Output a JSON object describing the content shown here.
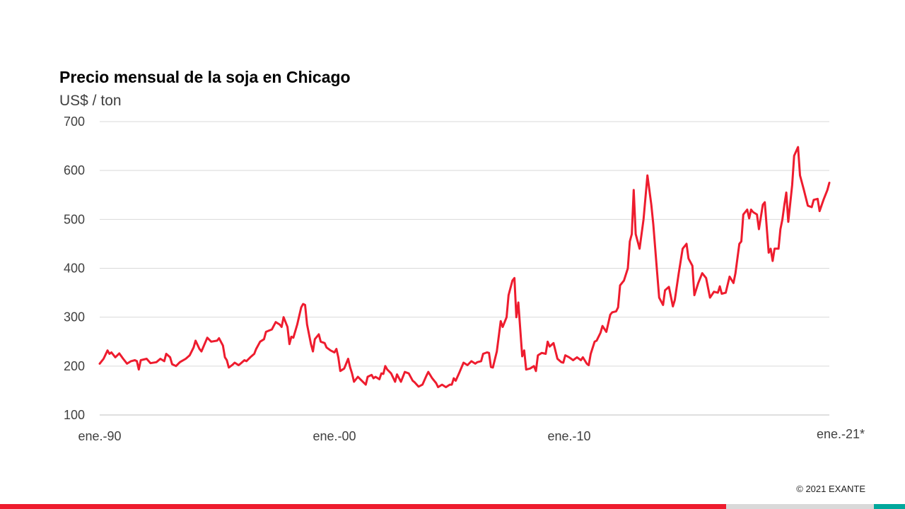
{
  "title": "Precio mensual de la soja en Chicago",
  "unit_label": "US$ / ton",
  "copyright": "© 2021 EXANTE",
  "colors": {
    "line": "#ee1c2e",
    "grid": "#d9d9d9",
    "tick_text": "#404040",
    "footer": [
      "#ee1c2e",
      "#d9d9d9",
      "#00a89c"
    ]
  },
  "chart_data": {
    "type": "line",
    "title": "Precio mensual de la soja en Chicago",
    "ylabel": "US$ / ton",
    "ylim": [
      100,
      700
    ],
    "yticks": [
      100,
      200,
      300,
      400,
      500,
      600,
      700
    ],
    "xlim": [
      "1990-01",
      "2021-02"
    ],
    "xticks": [
      {
        "label": "ene.-90",
        "date": "1990-01"
      },
      {
        "label": "ene.-00",
        "date": "2000-01"
      },
      {
        "label": "ene.-10",
        "date": "2010-01"
      },
      {
        "label": "ene.-21*",
        "date": "2021-02"
      }
    ],
    "grid": true,
    "series": [
      {
        "color": "#ee1c2e",
        "points": [
          [
            "1990-01",
            205
          ],
          [
            "1990-03",
            215
          ],
          [
            "1990-05",
            232
          ],
          [
            "1990-06",
            225
          ],
          [
            "1990-07",
            228
          ],
          [
            "1990-09",
            218
          ],
          [
            "1990-11",
            226
          ],
          [
            "1991-01",
            215
          ],
          [
            "1991-03",
            205
          ],
          [
            "1991-05",
            210
          ],
          [
            "1991-07",
            212
          ],
          [
            "1991-08",
            210
          ],
          [
            "1991-09",
            193
          ],
          [
            "1991-10",
            212
          ],
          [
            "1992-01",
            215
          ],
          [
            "1992-03",
            206
          ],
          [
            "1992-06",
            208
          ],
          [
            "1992-08",
            215
          ],
          [
            "1992-10",
            210
          ],
          [
            "1992-11",
            225
          ],
          [
            "1993-01",
            218
          ],
          [
            "1993-02",
            204
          ],
          [
            "1993-04",
            200
          ],
          [
            "1993-06",
            208
          ],
          [
            "1993-09",
            215
          ],
          [
            "1993-11",
            222
          ],
          [
            "1994-01",
            238
          ],
          [
            "1994-02",
            252
          ],
          [
            "1994-04",
            235
          ],
          [
            "1994-05",
            230
          ],
          [
            "1994-08",
            258
          ],
          [
            "1994-10",
            250
          ],
          [
            "1995-01",
            252
          ],
          [
            "1995-02",
            257
          ],
          [
            "1995-04",
            242
          ],
          [
            "1995-05",
            218
          ],
          [
            "1995-06",
            212
          ],
          [
            "1995-07",
            197
          ],
          [
            "1995-09",
            203
          ],
          [
            "1995-10",
            207
          ],
          [
            "1995-12",
            202
          ],
          [
            "1996-01",
            205
          ],
          [
            "1996-03",
            212
          ],
          [
            "1996-04",
            210
          ],
          [
            "1996-06",
            218
          ],
          [
            "1996-08",
            225
          ],
          [
            "1996-09",
            235
          ],
          [
            "1996-11",
            250
          ],
          [
            "1997-01",
            255
          ],
          [
            "1997-02",
            270
          ],
          [
            "1997-05",
            275
          ],
          [
            "1997-07",
            290
          ],
          [
            "1997-09",
            285
          ],
          [
            "1997-10",
            280
          ],
          [
            "1997-11",
            300
          ],
          [
            "1998-01",
            280
          ],
          [
            "1998-02",
            245
          ],
          [
            "1998-03",
            260
          ],
          [
            "1998-04",
            258
          ],
          [
            "1998-06",
            285
          ],
          [
            "1998-08",
            320
          ],
          [
            "1998-09",
            327
          ],
          [
            "1998-10",
            325
          ],
          [
            "1998-11",
            285
          ],
          [
            "1999-01",
            245
          ],
          [
            "1999-02",
            230
          ],
          [
            "1999-03",
            255
          ],
          [
            "1999-05",
            265
          ],
          [
            "1999-06",
            250
          ],
          [
            "1999-08",
            247
          ],
          [
            "1999-09",
            238
          ],
          [
            "1999-11",
            232
          ],
          [
            "2000-01",
            228
          ],
          [
            "2000-02",
            235
          ],
          [
            "2000-03",
            218
          ],
          [
            "2000-04",
            190
          ],
          [
            "2000-06",
            195
          ],
          [
            "2000-08",
            215
          ],
          [
            "2000-09",
            198
          ],
          [
            "2000-10",
            185
          ],
          [
            "2000-11",
            168
          ],
          [
            "2001-01",
            178
          ],
          [
            "2001-03",
            170
          ],
          [
            "2001-05",
            162
          ],
          [
            "2001-06",
            178
          ],
          [
            "2001-08",
            182
          ],
          [
            "2001-09",
            175
          ],
          [
            "2001-10",
            178
          ],
          [
            "2001-12",
            173
          ],
          [
            "2002-01",
            185
          ],
          [
            "2002-02",
            184
          ],
          [
            "2002-03",
            200
          ],
          [
            "2002-04",
            193
          ],
          [
            "2002-06",
            185
          ],
          [
            "2002-08",
            168
          ],
          [
            "2002-09",
            183
          ],
          [
            "2002-11",
            168
          ],
          [
            "2003-01",
            188
          ],
          [
            "2003-03",
            185
          ],
          [
            "2003-05",
            170
          ],
          [
            "2003-06",
            167
          ],
          [
            "2003-08",
            158
          ],
          [
            "2003-10",
            162
          ],
          [
            "2003-12",
            180
          ],
          [
            "2004-01",
            188
          ],
          [
            "2004-03",
            175
          ],
          [
            "2004-05",
            165
          ],
          [
            "2004-06",
            157
          ],
          [
            "2004-08",
            162
          ],
          [
            "2004-10",
            157
          ],
          [
            "2004-12",
            162
          ],
          [
            "2005-01",
            162
          ],
          [
            "2005-02",
            175
          ],
          [
            "2005-03",
            170
          ],
          [
            "2005-05",
            188
          ],
          [
            "2005-07",
            207
          ],
          [
            "2005-09",
            202
          ],
          [
            "2005-11",
            210
          ],
          [
            "2006-01",
            205
          ],
          [
            "2006-02",
            208
          ],
          [
            "2006-04",
            210
          ],
          [
            "2006-05",
            225
          ],
          [
            "2006-07",
            228
          ],
          [
            "2006-08",
            227
          ],
          [
            "2006-09",
            198
          ],
          [
            "2006-10",
            197
          ],
          [
            "2006-12",
            230
          ],
          [
            "2007-02",
            292
          ],
          [
            "2007-03",
            280
          ],
          [
            "2007-05",
            300
          ],
          [
            "2007-06",
            345
          ],
          [
            "2007-08",
            375
          ],
          [
            "2007-09",
            380
          ],
          [
            "2007-10",
            300
          ],
          [
            "2007-11",
            330
          ],
          [
            "2008-01",
            220
          ],
          [
            "2008-02",
            232
          ],
          [
            "2008-03",
            193
          ],
          [
            "2008-05",
            195
          ],
          [
            "2008-07",
            200
          ],
          [
            "2008-08",
            190
          ],
          [
            "2008-09",
            222
          ],
          [
            "2008-11",
            227
          ],
          [
            "2009-01",
            225
          ],
          [
            "2009-02",
            250
          ],
          [
            "2009-03",
            240
          ],
          [
            "2009-05",
            247
          ],
          [
            "2009-07",
            215
          ],
          [
            "2009-09",
            208
          ],
          [
            "2009-10",
            207
          ],
          [
            "2009-11",
            222
          ],
          [
            "2010-01",
            218
          ],
          [
            "2010-03",
            212
          ],
          [
            "2010-05",
            218
          ],
          [
            "2010-07",
            212
          ],
          [
            "2010-08",
            218
          ],
          [
            "2010-10",
            205
          ],
          [
            "2010-11",
            202
          ],
          [
            "2010-12",
            225
          ],
          [
            "2011-02",
            250
          ],
          [
            "2011-03",
            252
          ],
          [
            "2011-05",
            268
          ],
          [
            "2011-06",
            282
          ],
          [
            "2011-08",
            270
          ],
          [
            "2011-10",
            305
          ],
          [
            "2011-11",
            310
          ],
          [
            "2012-01",
            312
          ],
          [
            "2012-02",
            320
          ],
          [
            "2012-03",
            365
          ],
          [
            "2012-05",
            375
          ],
          [
            "2012-07",
            400
          ],
          [
            "2012-08",
            455
          ],
          [
            "2012-09",
            470
          ],
          [
            "2012-10",
            560
          ],
          [
            "2012-11",
            470
          ],
          [
            "2013-01",
            440
          ],
          [
            "2013-03",
            500
          ],
          [
            "2013-05",
            590
          ],
          [
            "2013-07",
            530
          ],
          [
            "2013-08",
            490
          ],
          [
            "2013-10",
            390
          ],
          [
            "2013-11",
            340
          ],
          [
            "2014-01",
            325
          ],
          [
            "2014-02",
            355
          ],
          [
            "2014-04",
            362
          ],
          [
            "2014-06",
            322
          ],
          [
            "2014-07",
            335
          ],
          [
            "2014-09",
            390
          ],
          [
            "2014-11",
            440
          ],
          [
            "2015-01",
            450
          ],
          [
            "2015-02",
            420
          ],
          [
            "2015-04",
            405
          ],
          [
            "2015-05",
            345
          ],
          [
            "2015-07",
            370
          ],
          [
            "2015-09",
            390
          ],
          [
            "2015-11",
            380
          ],
          [
            "2016-01",
            340
          ],
          [
            "2016-03",
            352
          ],
          [
            "2016-05",
            350
          ],
          [
            "2016-06",
            363
          ],
          [
            "2016-07",
            348
          ],
          [
            "2016-09",
            350
          ],
          [
            "2016-11",
            383
          ],
          [
            "2017-01",
            370
          ],
          [
            "2017-02",
            390
          ],
          [
            "2017-04",
            450
          ],
          [
            "2017-05",
            455
          ],
          [
            "2017-06",
            510
          ],
          [
            "2017-08",
            520
          ],
          [
            "2017-09",
            502
          ],
          [
            "2017-10",
            520
          ],
          [
            "2017-11",
            515
          ],
          [
            "2018-01",
            510
          ],
          [
            "2018-02",
            480
          ],
          [
            "2018-04",
            530
          ],
          [
            "2018-05",
            535
          ],
          [
            "2018-07",
            432
          ],
          [
            "2018-08",
            440
          ],
          [
            "2018-09",
            415
          ],
          [
            "2018-10",
            440
          ],
          [
            "2018-12",
            440
          ],
          [
            "2019-01",
            480
          ],
          [
            "2019-02",
            500
          ],
          [
            "2019-03",
            530
          ],
          [
            "2019-04",
            555
          ],
          [
            "2019-05",
            495
          ],
          [
            "2019-07",
            570
          ],
          [
            "2019-08",
            630
          ],
          [
            "2019-10",
            648
          ],
          [
            "2019-11",
            590
          ],
          [
            "2020-01",
            560
          ],
          [
            "2020-03",
            528
          ],
          [
            "2020-05",
            525
          ],
          [
            "2020-06",
            540
          ],
          [
            "2020-08",
            542
          ],
          [
            "2020-09",
            517
          ],
          [
            "2020-11",
            540
          ],
          [
            "2021-01",
            560
          ],
          [
            "2021-02",
            575
          ]
        ]
      }
    ]
  }
}
